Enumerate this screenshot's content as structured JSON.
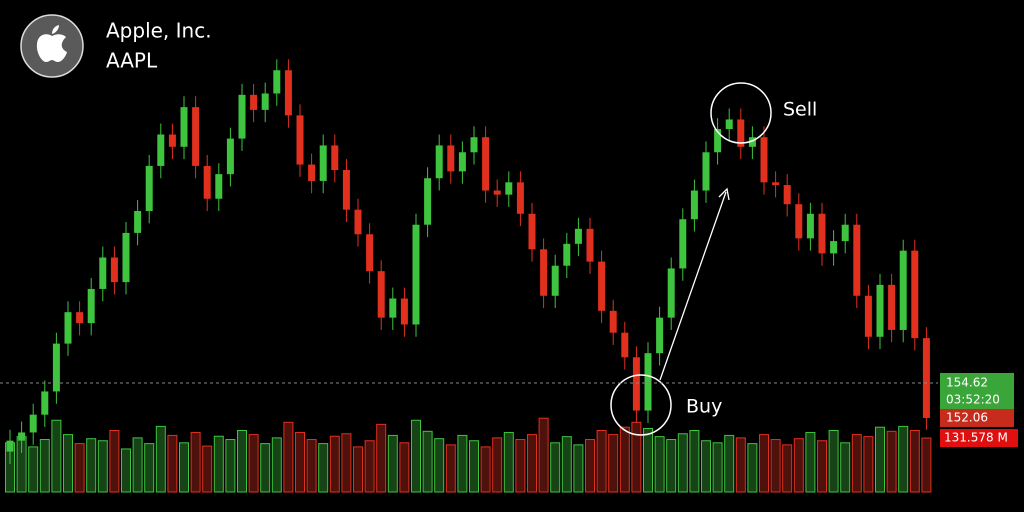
{
  "chart_data": {
    "type": "candlestick",
    "title": "Apple, Inc.",
    "subtitle": "AAPL",
    "open": [
      149.6,
      150.4,
      151.0,
      152.3,
      154.0,
      157.5,
      159.8,
      159.0,
      161.5,
      163.8,
      162.0,
      165.6,
      167.2,
      170.5,
      172.8,
      171.9,
      174.8,
      170.5,
      168.1,
      169.9,
      172.5,
      175.7,
      174.6,
      175.8,
      177.5,
      174.2,
      170.6,
      169.4,
      172.0,
      170.2,
      167.3,
      165.5,
      162.8,
      159.4,
      160.8,
      158.9,
      166.2,
      169.6,
      172.0,
      170.1,
      171.5,
      172.6,
      168.7,
      168.4,
      169.3,
      167.0,
      164.4,
      161.0,
      163.2,
      164.8,
      165.9,
      163.5,
      159.9,
      158.3,
      156.5,
      152.6,
      156.8,
      159.4,
      163.0,
      166.6,
      168.7,
      171.5,
      173.2,
      173.9,
      171.9,
      172.6,
      169.3,
      169.1,
      167.7,
      165.2,
      167.0,
      164.1,
      165.0,
      166.2,
      161.0,
      158.0,
      161.8,
      158.5,
      164.3,
      157.9
    ],
    "high": [
      151.2,
      151.8,
      153.1,
      154.8,
      158.3,
      160.6,
      160.6,
      162.3,
      164.6,
      164.6,
      166.4,
      168.0,
      171.3,
      173.6,
      173.6,
      175.6,
      175.6,
      171.3,
      170.7,
      173.3,
      176.5,
      176.5,
      176.6,
      178.3,
      178.3,
      175.0,
      171.4,
      172.8,
      172.8,
      171.0,
      168.1,
      166.3,
      163.6,
      161.6,
      161.6,
      167.0,
      170.4,
      172.8,
      172.8,
      172.3,
      173.4,
      173.4,
      169.5,
      170.1,
      170.1,
      167.8,
      165.2,
      164.0,
      165.6,
      166.7,
      166.7,
      164.3,
      160.7,
      159.1,
      157.3,
      157.6,
      160.2,
      163.8,
      167.4,
      169.5,
      172.3,
      174.0,
      174.7,
      174.7,
      173.4,
      173.4,
      170.1,
      169.9,
      168.5,
      167.8,
      167.8,
      165.8,
      167.0,
      167.0,
      161.8,
      162.6,
      162.6,
      165.1,
      165.1,
      158.7
    ],
    "low": [
      148.7,
      149.5,
      150.1,
      151.4,
      153.1,
      156.6,
      158.1,
      158.1,
      160.6,
      161.1,
      161.1,
      164.7,
      166.3,
      169.6,
      171.0,
      171.0,
      169.6,
      167.2,
      167.2,
      169.0,
      171.6,
      173.7,
      173.7,
      174.9,
      173.3,
      169.7,
      168.5,
      168.5,
      169.3,
      166.4,
      164.6,
      161.9,
      158.5,
      158.5,
      158.0,
      158.0,
      165.3,
      168.7,
      169.2,
      169.2,
      170.6,
      167.8,
      167.5,
      167.5,
      166.1,
      163.5,
      160.1,
      160.1,
      162.3,
      163.9,
      162.6,
      159.0,
      157.4,
      155.6,
      151.7,
      151.7,
      155.9,
      158.5,
      162.1,
      165.7,
      167.8,
      170.6,
      172.3,
      171.0,
      171.0,
      168.4,
      168.2,
      166.8,
      164.3,
      164.3,
      163.2,
      163.2,
      164.1,
      160.1,
      157.1,
      157.1,
      157.6,
      157.6,
      157.0,
      151.2
    ],
    "close": [
      150.4,
      151.0,
      152.3,
      154.0,
      157.5,
      159.8,
      159.0,
      161.5,
      163.8,
      162.0,
      165.6,
      167.2,
      170.5,
      172.8,
      171.9,
      174.8,
      170.5,
      168.1,
      169.9,
      172.5,
      175.7,
      174.6,
      175.8,
      177.5,
      174.2,
      170.6,
      169.4,
      172.0,
      170.2,
      167.3,
      165.5,
      162.8,
      159.4,
      160.8,
      158.9,
      166.2,
      169.6,
      172.0,
      170.1,
      171.5,
      172.6,
      168.7,
      168.4,
      169.3,
      167.0,
      164.4,
      161.0,
      163.2,
      164.8,
      165.9,
      163.5,
      159.9,
      158.3,
      156.5,
      152.6,
      156.8,
      159.4,
      163.0,
      166.6,
      168.7,
      171.5,
      173.2,
      173.9,
      171.9,
      172.6,
      169.3,
      169.1,
      167.7,
      165.2,
      167.0,
      164.1,
      165.0,
      166.2,
      161.0,
      158.0,
      161.8,
      158.5,
      164.3,
      157.9,
      152.06
    ],
    "volume": [
      120,
      135,
      110,
      128,
      175,
      140,
      118,
      130,
      125,
      150,
      105,
      132,
      118,
      160,
      138,
      120,
      145,
      112,
      136,
      128,
      150,
      140,
      118,
      132,
      170,
      145,
      128,
      118,
      136,
      142,
      110,
      125,
      165,
      138,
      120,
      175,
      148,
      130,
      115,
      138,
      125,
      110,
      132,
      145,
      128,
      140,
      180,
      120,
      135,
      115,
      128,
      150,
      140,
      158,
      170,
      155,
      135,
      128,
      142,
      150,
      125,
      120,
      138,
      132,
      118,
      140,
      128,
      115,
      130,
      145,
      125,
      150,
      120,
      140,
      135,
      158,
      148,
      160,
      150,
      131.578
    ],
    "last_volume_label": "131.578 M",
    "marker_price": 154.62,
    "countdown": "03:52:20",
    "ylim": [
      145.18,
      182.64
    ],
    "volume_lim": [
      0,
      300
    ],
    "up_color": "#3fc43f",
    "down_color": "#e2301f",
    "annotations": [
      "Buy",
      "Sell"
    ]
  }
}
